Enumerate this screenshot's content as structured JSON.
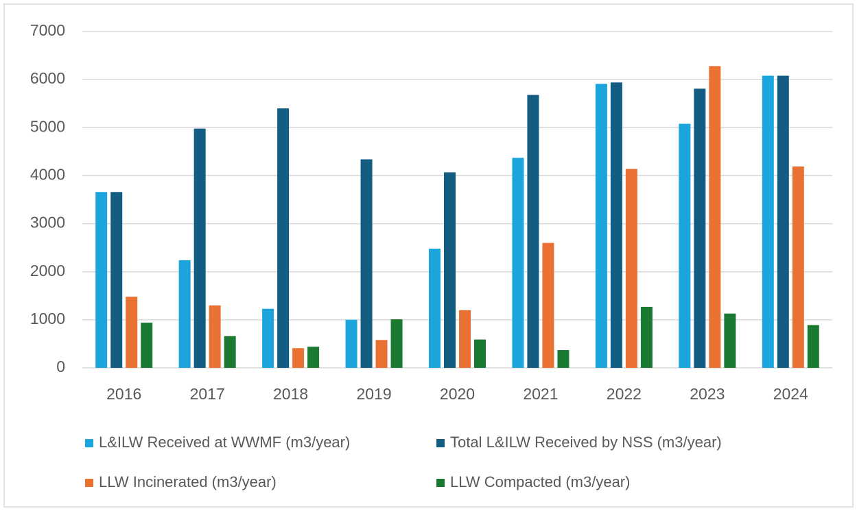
{
  "chart_data": {
    "type": "bar",
    "categories": [
      "2016",
      "2017",
      "2018",
      "2019",
      "2020",
      "2021",
      "2022",
      "2023",
      "2024"
    ],
    "series": [
      {
        "name": "L&ILW Received at WWMF (m3/year)",
        "color": "#1ca4dc",
        "values": [
          3660,
          2240,
          1230,
          1000,
          2480,
          4370,
          5910,
          5080,
          6080
        ]
      },
      {
        "name": "Total L&ILW Received by NSS (m3/year)",
        "color": "#145d82",
        "values": [
          3660,
          4980,
          5400,
          4340,
          4070,
          5680,
          5940,
          5810,
          6080
        ]
      },
      {
        "name": "LLW Incinerated (m3/year)",
        "color": "#e97233",
        "values": [
          1480,
          1300,
          410,
          580,
          1200,
          2600,
          4140,
          6280,
          4190
        ]
      },
      {
        "name": "LLW Compacted (m3/year)",
        "color": "#1b7a31",
        "values": [
          940,
          660,
          440,
          1010,
          590,
          370,
          1270,
          1130,
          890
        ]
      }
    ],
    "ylim": [
      0,
      7000
    ],
    "yticks": [
      0,
      1000,
      2000,
      3000,
      4000,
      5000,
      6000,
      7000
    ],
    "grid": true,
    "legend": "bottom"
  }
}
